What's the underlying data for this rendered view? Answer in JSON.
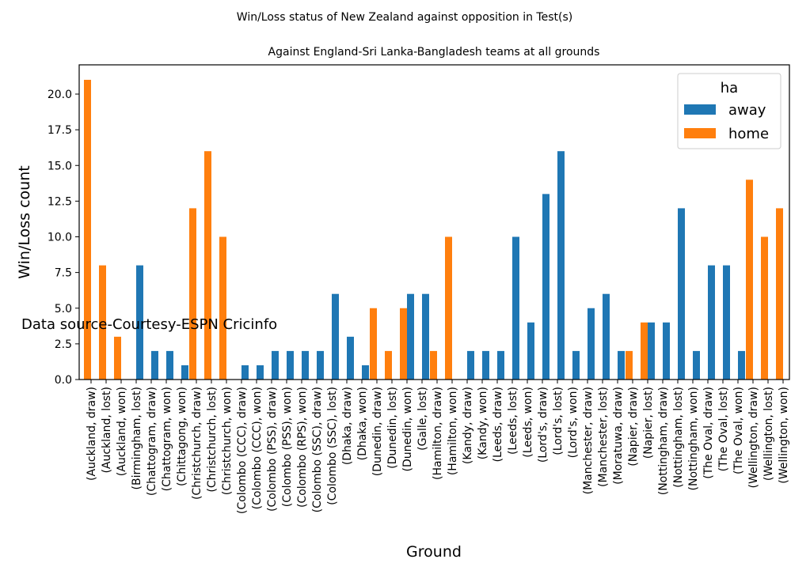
{
  "chart_data": {
    "type": "bar",
    "suptitle": "Win/Loss status of New Zealand against opposition in Test(s)",
    "title": "Against England-Sri Lanka-Bangladesh teams at all grounds",
    "xlabel": "Ground",
    "ylabel": "Win/Loss count",
    "ylim": [
      0,
      22
    ],
    "yticks": [
      "0.0",
      "2.5",
      "5.0",
      "7.5",
      "10.0",
      "12.5",
      "15.0",
      "17.5",
      "20.0"
    ],
    "annotation": "Data source-Courtesy-ESPN Cricinfo",
    "legend": {
      "title": "ha",
      "position": "top-right"
    },
    "categories": [
      "(Auckland, draw)",
      "(Auckland, lost)",
      "(Auckland, won)",
      "(Birmingham, lost)",
      "(Chattogram, draw)",
      "(Chattogram, won)",
      "(Chittagong, won)",
      "(Christchurch, draw)",
      "(Christchurch, lost)",
      "(Christchurch, won)",
      "(Colombo (CCC), draw)",
      "(Colombo (CCC), won)",
      "(Colombo (PSS), draw)",
      "(Colombo (PSS), won)",
      "(Colombo (RPS), won)",
      "(Colombo (SSC), draw)",
      "(Colombo (SSC), lost)",
      "(Dhaka, draw)",
      "(Dhaka, won)",
      "(Dunedin, draw)",
      "(Dunedin, lost)",
      "(Dunedin, won)",
      "(Galle, lost)",
      "(Hamilton, draw)",
      "(Hamilton, won)",
      "(Kandy, draw)",
      "(Kandy, won)",
      "(Leeds, draw)",
      "(Leeds, lost)",
      "(Leeds, won)",
      "(Lord's, draw)",
      "(Lord's, lost)",
      "(Lord's, won)",
      "(Manchester, draw)",
      "(Manchester, lost)",
      "(Moratuwa, draw)",
      "(Napier, draw)",
      "(Napier, lost)",
      "(Nottingham, draw)",
      "(Nottingham, lost)",
      "(Nottingham, won)",
      "(The Oval, draw)",
      "(The Oval, lost)",
      "(The Oval, won)",
      "(Wellington, draw)",
      "(Wellington, lost)",
      "(Wellington, won)"
    ],
    "series": [
      {
        "name": "away",
        "color": "#1f77b4",
        "values": [
          0,
          0,
          0,
          8,
          2,
          2,
          1,
          0,
          0,
          0,
          1,
          1,
          2,
          2,
          2,
          2,
          6,
          3,
          1,
          0,
          0,
          6,
          6,
          0,
          0,
          2,
          2,
          2,
          10,
          4,
          13,
          16,
          2,
          5,
          6,
          2,
          0,
          4,
          4,
          12,
          2,
          8,
          8,
          2,
          0,
          0,
          0
        ]
      },
      {
        "name": "home",
        "color": "#ff7f0e",
        "values": [
          21,
          8,
          3,
          0,
          0,
          0,
          0,
          12,
          16,
          10,
          0,
          0,
          0,
          0,
          0,
          0,
          0,
          0,
          0,
          5,
          2,
          5,
          0,
          2,
          10,
          0,
          0,
          0,
          0,
          0,
          0,
          0,
          0,
          0,
          0,
          0,
          2,
          4,
          0,
          0,
          0,
          0,
          0,
          0,
          14,
          10,
          12
        ]
      }
    ]
  }
}
